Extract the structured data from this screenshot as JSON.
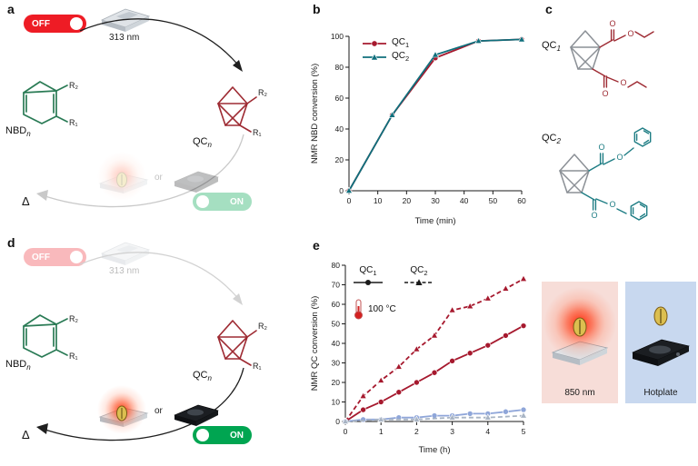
{
  "labels": {
    "a": "a",
    "b": "b",
    "c": "c",
    "d": "d",
    "e": "e"
  },
  "cycle": {
    "off": "OFF",
    "on": "ON",
    "wavelength": "313 nm",
    "nbd_base": "NBD",
    "qc_base": "QC",
    "sub_n": "n",
    "r1": "R₁",
    "r2": "R₂",
    "or": "or",
    "delta": "Δ"
  },
  "panel_c": {
    "qc1_base": "QC",
    "qc1_sub": "1",
    "qc2_base": "QC",
    "qc2_sub": "2",
    "atom_o": "O"
  },
  "panel_e": {
    "temp_label": "100 °C",
    "nir_label": "850 nm",
    "hotplate_label": "Hotplate"
  },
  "colors": {
    "off_red": "#ee1c25",
    "on_green": "#00a551",
    "qc1_red": "#a6192e",
    "qc2_teal": "#0f6f7c",
    "nbd_green": "#2a7b55",
    "qc_cage_red": "#9e2b33",
    "hotplate_tile_blue": "#c8d8ef",
    "nir_tile_pink": "#f7ddd8",
    "hotplate_series_blue": "#8fa6d9",
    "hotplate_series_grey": "#a8b4c4"
  },
  "chart_data": [
    {
      "type": "line",
      "xlabel": "Time (min)",
      "ylabel": "NMR NBD conversion (%)",
      "xlim": [
        0,
        60
      ],
      "ylim": [
        0,
        100
      ],
      "xticks": [
        0,
        10,
        20,
        30,
        40,
        50,
        60
      ],
      "yticks": [
        0,
        20,
        40,
        60,
        80,
        100
      ],
      "grid": false,
      "legend_position": "top-left",
      "series": [
        {
          "name": "QC1",
          "base": "QC",
          "sub": "1",
          "color": "#a6192e",
          "marker": "circle",
          "dash": false,
          "x": [
            0,
            15,
            30,
            45,
            60
          ],
          "y": [
            0,
            49,
            86,
            97,
            98
          ]
        },
        {
          "name": "QC2",
          "base": "QC",
          "sub": "2",
          "color": "#0f6f7c",
          "marker": "triangle",
          "dash": false,
          "x": [
            0,
            15,
            30,
            45,
            60
          ],
          "y": [
            0,
            49,
            88,
            97,
            98
          ]
        }
      ]
    },
    {
      "type": "line",
      "xlabel": "Time (h)",
      "ylabel": "NMR QC conversion (%)",
      "xlim": [
        0,
        5
      ],
      "ylim": [
        0,
        80
      ],
      "xticks": [
        0,
        1,
        2,
        3,
        4,
        5
      ],
      "yticks": [
        0,
        10,
        20,
        30,
        40,
        50,
        60,
        70,
        80
      ],
      "grid": false,
      "legend_position": "top-left",
      "legend": [
        {
          "base": "QC",
          "sub": "1",
          "marker": "circle",
          "dash": false,
          "color": "#1a1a1a"
        },
        {
          "base": "QC",
          "sub": "2",
          "marker": "triangle",
          "dash": true,
          "color": "#1a1a1a"
        }
      ],
      "series": [
        {
          "name": "QC2 850 nm",
          "color": "#a6192e",
          "marker": "triangle",
          "dash": true,
          "x": [
            0,
            0.5,
            1,
            1.5,
            2,
            2.5,
            3,
            3.5,
            4,
            4.5,
            5
          ],
          "y": [
            0,
            13,
            21,
            28,
            37,
            44,
            57,
            59,
            63,
            68,
            73
          ]
        },
        {
          "name": "QC1 850 nm",
          "color": "#a6192e",
          "marker": "circle",
          "dash": false,
          "x": [
            0,
            0.5,
            1,
            1.5,
            2,
            2.5,
            3,
            3.5,
            4,
            4.5,
            5
          ],
          "y": [
            0,
            6,
            10,
            15,
            20,
            25,
            31,
            35,
            39,
            44,
            49
          ]
        },
        {
          "name": "QC1 hotplate",
          "color": "#8fa6d9",
          "marker": "circle",
          "dash": false,
          "x": [
            0,
            0.5,
            1,
            1.5,
            2,
            2.5,
            3,
            3.5,
            4,
            4.5,
            5
          ],
          "y": [
            0,
            1,
            1,
            2,
            2,
            3,
            3,
            4,
            4,
            5,
            6
          ]
        },
        {
          "name": "QC2 hotplate",
          "color": "#a8b4c4",
          "marker": "triangle",
          "dash": true,
          "x": [
            0,
            1,
            2,
            3,
            4,
            5
          ],
          "y": [
            0,
            1,
            1,
            2,
            2,
            3
          ]
        }
      ]
    }
  ]
}
